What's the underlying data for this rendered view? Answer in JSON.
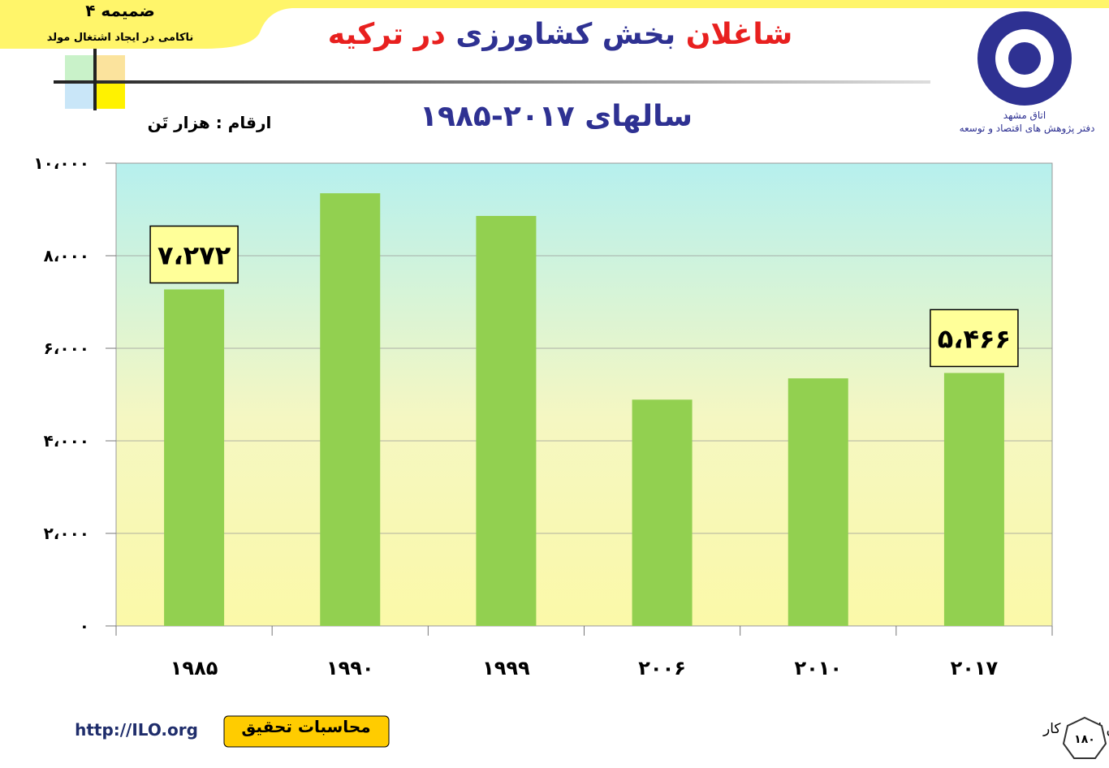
{
  "header": {
    "appendix": "ضمیمه ۴",
    "appendix_subtitle": "ناکامی در ایجاد اشتغال مولد",
    "logo_line1": "اتاق مشهد",
    "logo_line2": "دفتر پژوهش های اقتصاد و توسعه"
  },
  "chart_data": {
    "type": "bar",
    "title_parts": [
      {
        "text": "شاغلان",
        "color": "#e8201f"
      },
      {
        "text": "بخش کشاورزی",
        "color": "#2e3192"
      },
      {
        "text": "در ترکیه",
        "color": "#e8201f"
      }
    ],
    "subtitle": "سالهای ۲۰۱۷-۱۹۸۵",
    "unit_label": "ارقام : هزار تَن",
    "categories": [
      "۱۹۸۵",
      "۱۹۹۰",
      "۱۹۹۹",
      "۲۰۰۶",
      "۲۰۱۰",
      "۲۰۱۷"
    ],
    "values": [
      7272,
      9350,
      8860,
      4890,
      5350,
      5466
    ],
    "value_labels": [
      "۷،۲۷۲",
      null,
      null,
      null,
      null,
      "۵،۴۶۶"
    ],
    "color": "#92d050",
    "ylim": [
      0,
      10000
    ],
    "yticks": [
      {
        "value": 0,
        "label": "۰"
      },
      {
        "value": 2000,
        "label": "۲،۰۰۰"
      },
      {
        "value": 4000,
        "label": "۴،۰۰۰"
      },
      {
        "value": 6000,
        "label": "۶،۰۰۰"
      },
      {
        "value": 8000,
        "label": "۸،۰۰۰"
      },
      {
        "value": 10000,
        "label": "۱۰،۰۰۰"
      }
    ],
    "grid": true
  },
  "footer": {
    "link": "http://ILO.org",
    "note_button": "محاسبات تحقیق",
    "source": "مأخذ: سازمان بین المللی کار",
    "page_number": "۱۸۰"
  }
}
